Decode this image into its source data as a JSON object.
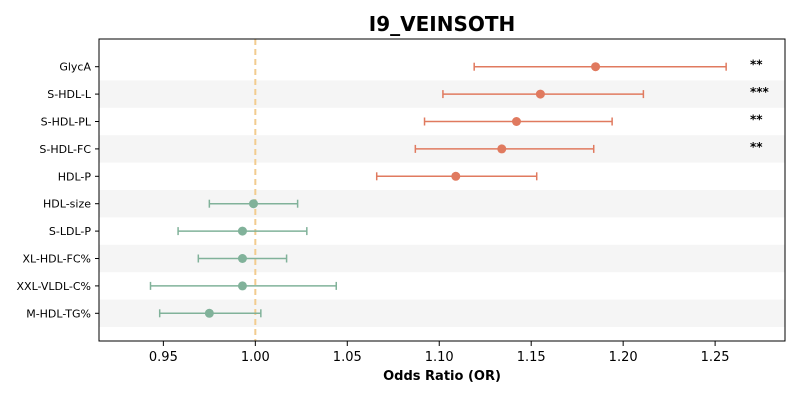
{
  "chart_data": {
    "type": "forest",
    "title": "I9_VEINSOTH",
    "xlabel": "Odds Ratio (OR)",
    "xlim": [
      0.915,
      1.288
    ],
    "xticks": [
      "0.95",
      "1.00",
      "1.05",
      "1.10",
      "1.15",
      "1.20",
      "1.25"
    ],
    "xtick_values": [
      0.95,
      1.0,
      1.05,
      1.1,
      1.15,
      1.2,
      1.25
    ],
    "reference_line": 1.0,
    "colors": {
      "positive": "#E07A5F",
      "negative": "#81B29A",
      "reference": "#F2CC8F",
      "band": "#F5F5F5"
    },
    "rows": [
      {
        "label": "GlycA",
        "or": 1.185,
        "lower": 1.119,
        "upper": 1.256,
        "sig": "**"
      },
      {
        "label": "S-HDL-L",
        "or": 1.155,
        "lower": 1.102,
        "upper": 1.211,
        "sig": "***"
      },
      {
        "label": "S-HDL-PL",
        "or": 1.142,
        "lower": 1.092,
        "upper": 1.194,
        "sig": "**"
      },
      {
        "label": "S-HDL-FC",
        "or": 1.134,
        "lower": 1.087,
        "upper": 1.184,
        "sig": "**"
      },
      {
        "label": "HDL-P",
        "or": 1.109,
        "lower": 1.066,
        "upper": 1.153,
        "sig": ""
      },
      {
        "label": "HDL-size",
        "or": 0.999,
        "lower": 0.975,
        "upper": 1.023,
        "sig": ""
      },
      {
        "label": "S-LDL-P",
        "or": 0.993,
        "lower": 0.958,
        "upper": 1.028,
        "sig": ""
      },
      {
        "label": "XL-HDL-FC%",
        "or": 0.993,
        "lower": 0.969,
        "upper": 1.017,
        "sig": ""
      },
      {
        "label": "XXL-VLDL-C%",
        "or": 0.993,
        "lower": 0.943,
        "upper": 1.044,
        "sig": ""
      },
      {
        "label": "M-HDL-TG%",
        "or": 0.975,
        "lower": 0.948,
        "upper": 1.003,
        "sig": ""
      }
    ]
  }
}
